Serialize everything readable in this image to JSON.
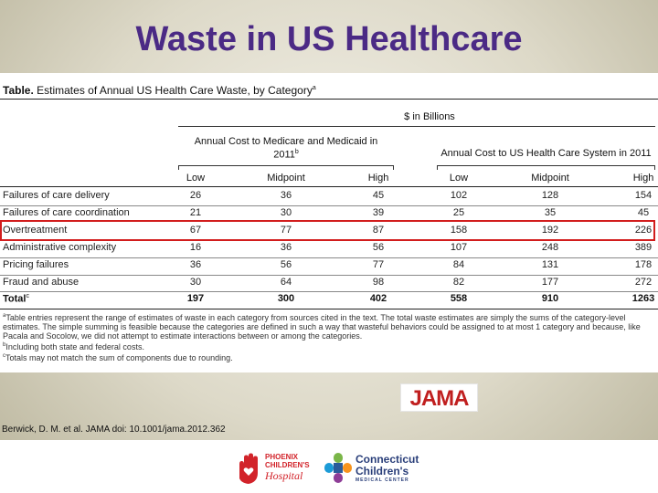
{
  "slide": {
    "title": "Waste in US Healthcare",
    "citation": "Berwick, D. M. et al. JAMA doi: 10.1001/jama.2012.362",
    "jama_logo_text": "JAMA"
  },
  "table": {
    "caption_bold": "Table.",
    "caption_text": " Estimates of Annual US Health Care Waste, by Category",
    "caption_sup": "a",
    "units_header": "$ in Billions",
    "group1_line1": "Annual Cost to Medicare and Medicaid in",
    "group1_line2": "2011",
    "group1_sup": "b",
    "group2": "Annual Cost to US Health Care System in 2011",
    "col_headers": [
      "Low",
      "Midpoint",
      "High",
      "Low",
      "Midpoint",
      "High"
    ],
    "rows": [
      {
        "category": "Failures of care delivery",
        "values": [
          "26",
          "36",
          "45",
          "102",
          "128",
          "154"
        ]
      },
      {
        "category": "Failures of care coordination",
        "values": [
          "21",
          "30",
          "39",
          "25",
          "35",
          "45"
        ]
      },
      {
        "category": "Overtreatment",
        "values": [
          "67",
          "77",
          "87",
          "158",
          "192",
          "226"
        ]
      },
      {
        "category": "Administrative complexity",
        "values": [
          "16",
          "36",
          "56",
          "107",
          "248",
          "389"
        ]
      },
      {
        "category": "Pricing failures",
        "values": [
          "36",
          "56",
          "77",
          "84",
          "131",
          "178"
        ]
      },
      {
        "category": "Fraud and abuse",
        "values": [
          "30",
          "64",
          "98",
          "82",
          "177",
          "272"
        ]
      }
    ],
    "total": {
      "category": "Total",
      "sup": "c",
      "values": [
        "197",
        "300",
        "402",
        "558",
        "910",
        "1263"
      ]
    },
    "footnotes": {
      "a_mark": "a",
      "a_text": "Table entries represent the range of estimates of waste in each category from sources cited in the text. The total waste estimates are simply the sums of the category-level estimates. The simple summing is feasible because the categories are defined in such a way that wasteful behaviors could be assigned to at most 1 category and because, like Pacala and Socolow, we did not attempt to estimate interactions between or among the categories.",
      "b_mark": "b",
      "b_text": "Including both state and federal costs.",
      "c_mark": "c",
      "c_text": "Totals may not match the sum of components due to rounding."
    }
  },
  "logos": {
    "pch_line1": "PHOENIX",
    "pch_line2": "CHILDREN'S",
    "pch_line3": "Hospital",
    "ccmc_line1": "Connecticut",
    "ccmc_line2": "Children's",
    "ccmc_line3": "MEDICAL CENTER"
  },
  "colors": {
    "title": "#4b2a85",
    "highlight": "#d21d1d",
    "jama_red": "#c01f1f"
  }
}
